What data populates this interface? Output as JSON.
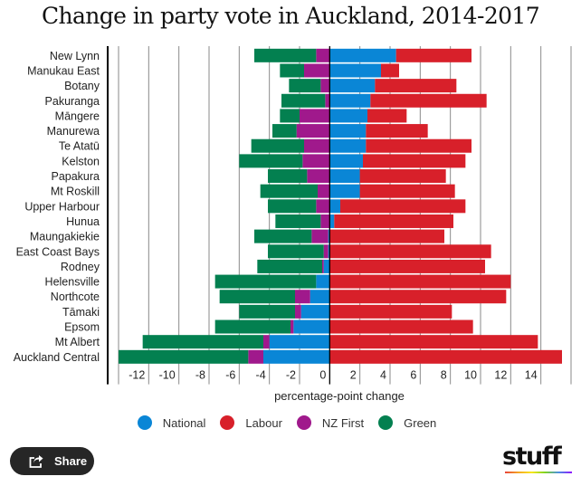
{
  "chart_data": {
    "type": "bar",
    "orientation": "horizontal",
    "stacked": true,
    "title": "Change in party vote in Auckland, 2014-2017",
    "xlabel": "percentage-point change",
    "ylabel": "",
    "xlim": [
      -14,
      16
    ],
    "xticks": [
      -12,
      -10,
      -8,
      -6,
      -4,
      -2,
      0,
      2,
      4,
      6,
      8,
      10,
      12,
      14
    ],
    "grid": true,
    "legend_position": "bottom",
    "categories": [
      "New Lynn",
      "Manukau East",
      "Botany",
      "Pakuranga",
      "Māngere",
      "Manurewa",
      "Te Atatū",
      "Kelston",
      "Papakura",
      "Mt Roskill",
      "Upper Harbour",
      "Hunua",
      "Maungakiekie",
      "East Coast Bays",
      "Rodney",
      "Helensville",
      "Northcote",
      "Tāmaki",
      "Epsom",
      "Mt Albert",
      "Auckland Central"
    ],
    "series": [
      {
        "name": "National",
        "color": "#0a86d6",
        "values": [
          4.4,
          3.4,
          3.0,
          2.7,
          2.5,
          2.4,
          2.4,
          2.2,
          2.0,
          2.0,
          0.7,
          0.3,
          -0.1,
          -0.1,
          -0.4,
          -0.9,
          -1.3,
          -1.9,
          -2.4,
          -4.0,
          -4.4
        ]
      },
      {
        "name": "Labour",
        "color": "#d8202a",
        "values": [
          5.0,
          1.2,
          5.4,
          7.7,
          2.6,
          4.1,
          7.0,
          6.8,
          5.7,
          6.3,
          8.3,
          7.9,
          7.6,
          10.7,
          10.3,
          12.0,
          11.7,
          8.1,
          9.5,
          13.8,
          15.4
        ]
      },
      {
        "name": "NZ First",
        "color": "#a0198c",
        "values": [
          -0.9,
          -1.7,
          -0.6,
          -0.3,
          -2.0,
          -2.2,
          -1.7,
          -1.8,
          -1.5,
          -0.8,
          -0.9,
          -0.6,
          -1.1,
          -0.3,
          -0.1,
          0.0,
          -1.0,
          -0.4,
          -0.2,
          -0.4,
          -1.0
        ]
      },
      {
        "name": "Green",
        "color": "#038050",
        "values": [
          -4.1,
          -1.6,
          -2.1,
          -2.9,
          -1.3,
          -1.6,
          -3.5,
          -4.2,
          -2.6,
          -3.8,
          -3.2,
          -3.0,
          -3.8,
          -3.7,
          -4.3,
          -6.7,
          -5.0,
          -3.7,
          -5.0,
          -8.0,
          -8.6
        ]
      }
    ]
  },
  "legend": [
    {
      "label": "National",
      "color": "#0a86d6"
    },
    {
      "label": "Labour",
      "color": "#d8202a"
    },
    {
      "label": "NZ First",
      "color": "#a0198c"
    },
    {
      "label": "Green",
      "color": "#038050"
    }
  ],
  "footer": {
    "share_label": "Share",
    "logo_text": "stuff"
  }
}
